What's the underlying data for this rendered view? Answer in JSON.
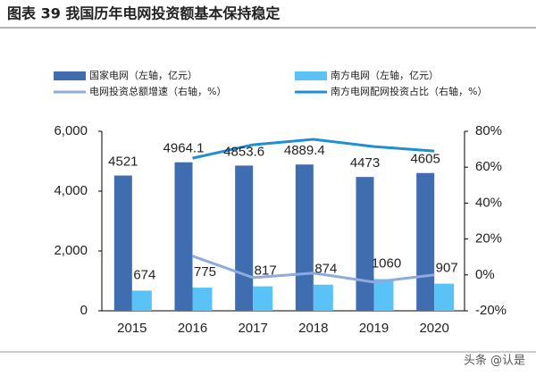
{
  "chart_data": {
    "type": "bar",
    "title": "图表 39  我国历年电网投资额基本保持稳定",
    "categories": [
      "2015",
      "2016",
      "2017",
      "2018",
      "2019",
      "2020"
    ],
    "series": [
      {
        "name": "国家电网（左轴，亿元）",
        "color": "#3f6db0",
        "values": [
          4521,
          4964.1,
          4853.6,
          4889.4,
          4473,
          4605
        ]
      },
      {
        "name": "南方电网（左轴，亿元）",
        "color": "#5bc2f7",
        "values": [
          674,
          775,
          817,
          874,
          1060,
          907
        ]
      },
      {
        "name": "电网投资总额增速（右轴，%）",
        "color": "#8eaadf",
        "type": "line",
        "axis": "y2",
        "values": [
          null,
          10.5,
          -1.5,
          1,
          -4,
          0
        ]
      },
      {
        "name": "南方电网配网投资占比（右轴，%）",
        "color": "#1e8fd5",
        "type": "line",
        "axis": "y2",
        "values": [
          null,
          65,
          72.5,
          75.5,
          71.5,
          69
        ]
      }
    ],
    "ylim": [
      0,
      6000
    ],
    "yticks": [
      0,
      {
        "value": 2000,
        "label": "2,000"
      },
      {
        "value": 4000,
        "label": "4,000"
      },
      {
        "value": 6000,
        "label": "6,000"
      }
    ],
    "y2lim": [
      -20,
      80
    ],
    "y2ticks": [
      {
        "value": -20,
        "label": "-20%"
      },
      {
        "value": 0,
        "label": "0%"
      },
      {
        "value": 20,
        "label": "20%"
      },
      {
        "value": 40,
        "label": "40%"
      },
      {
        "value": 60,
        "label": "60%"
      },
      {
        "value": 80,
        "label": "80%"
      }
    ],
    "watermark": "头条 @认是"
  }
}
